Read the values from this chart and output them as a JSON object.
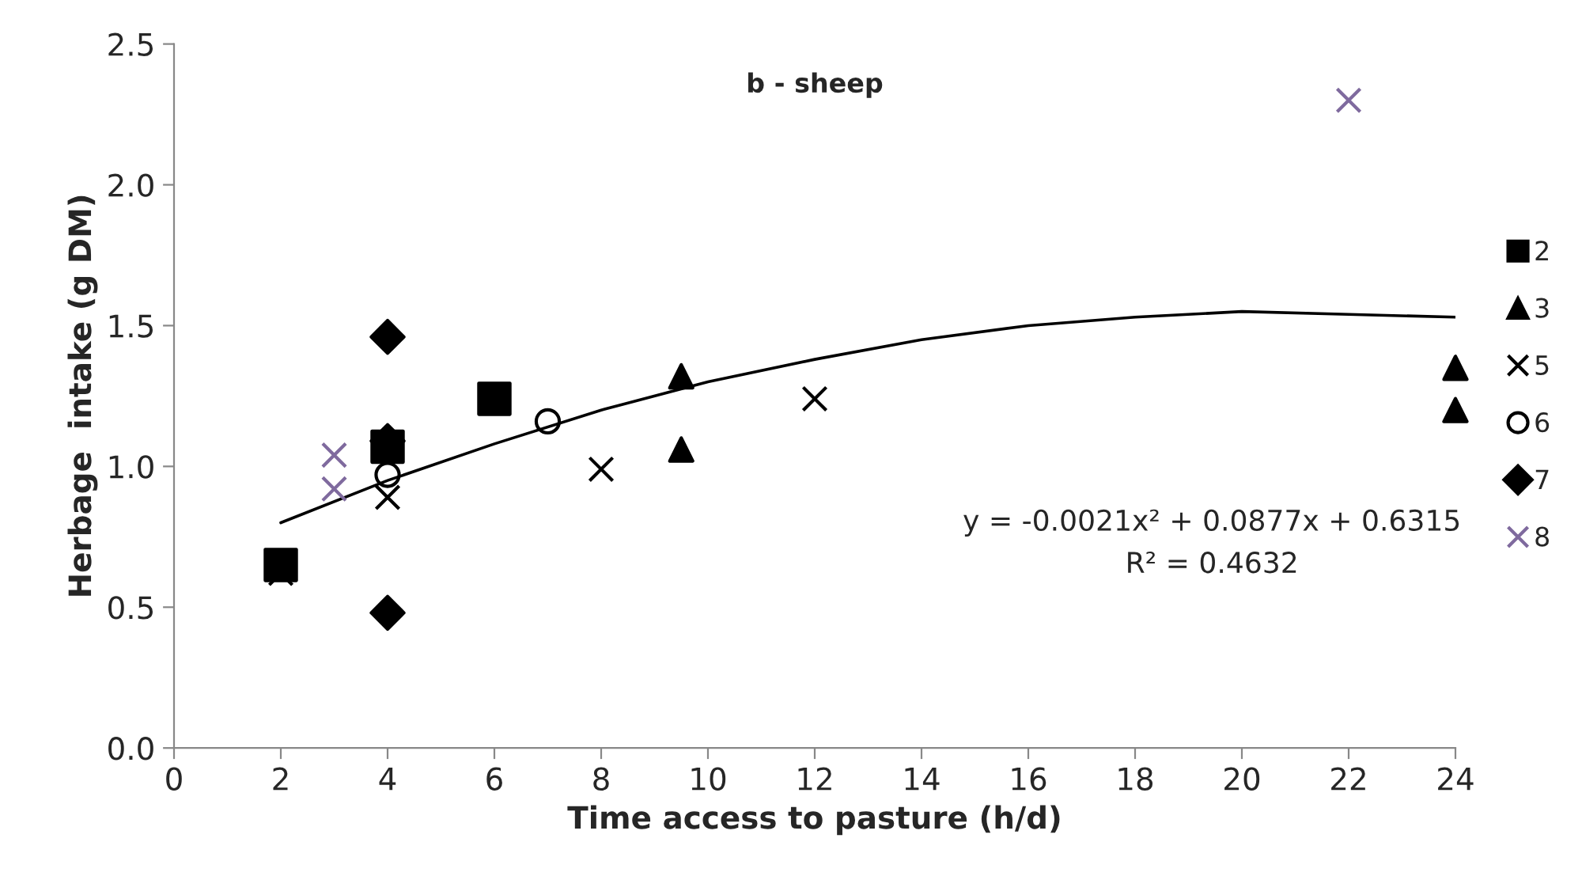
{
  "chart_data": {
    "type": "scatter",
    "title": "b - sheep",
    "xlabel": "Time access to pasture (h/d)",
    "ylabel": "Herbage  intake (g DM)",
    "xlim": [
      0,
      24
    ],
    "xticks": [
      0,
      2,
      4,
      6,
      8,
      10,
      12,
      14,
      16,
      18,
      20,
      22,
      24
    ],
    "ylim": [
      0,
      2.5
    ],
    "yticks": [
      {
        "value": 0,
        "label": "0.0"
      },
      {
        "value": 0.5,
        "label": "0.5"
      },
      {
        "value": 1,
        "label": "1.0"
      },
      {
        "value": 1.5,
        "label": "1.5"
      },
      {
        "value": 2,
        "label": "2.0"
      },
      {
        "value": 2.5,
        "label": "2.5"
      }
    ],
    "grid": false,
    "legend": "right",
    "series": [
      {
        "name": "2",
        "marker": "square",
        "color": "#000000",
        "x": [
          2,
          4,
          6
        ],
        "values": [
          0.65,
          1.07,
          1.24
        ]
      },
      {
        "name": "3",
        "marker": "triangle",
        "color": "#000000",
        "x": [
          9.5,
          9.5,
          24,
          24
        ],
        "values": [
          1.32,
          1.06,
          1.35,
          1.2
        ]
      },
      {
        "name": "5",
        "marker": "cross",
        "color": "#000000",
        "x": [
          2,
          4,
          8,
          12
        ],
        "values": [
          0.62,
          0.89,
          0.99,
          1.24
        ]
      },
      {
        "name": "6",
        "marker": "circle",
        "color": "#000000",
        "x": [
          4,
          7
        ],
        "values": [
          0.97,
          1.16
        ]
      },
      {
        "name": "7",
        "marker": "diamond",
        "color": "#000000",
        "x": [
          4,
          4,
          4
        ],
        "values": [
          1.46,
          1.09,
          0.48
        ]
      },
      {
        "name": "8",
        "marker": "cross",
        "color": "#7f6a9e",
        "x": [
          3,
          3,
          22
        ],
        "values": [
          1.04,
          0.92,
          2.3
        ]
      },
      {
        "type": "line",
        "marker": "none",
        "line_style": "solid",
        "color": "#000000",
        "x": [
          2,
          4,
          6,
          8,
          10,
          12,
          14,
          16,
          18,
          20,
          22,
          24
        ],
        "values": [
          0.8,
          0.95,
          1.08,
          1.2,
          1.3,
          1.38,
          1.45,
          1.5,
          1.53,
          1.55,
          1.54,
          1.53
        ]
      }
    ],
    "annotations": [
      "y = -0.0021x² + 0.0877x + 0.6315",
      "R² = 0.4632"
    ]
  }
}
